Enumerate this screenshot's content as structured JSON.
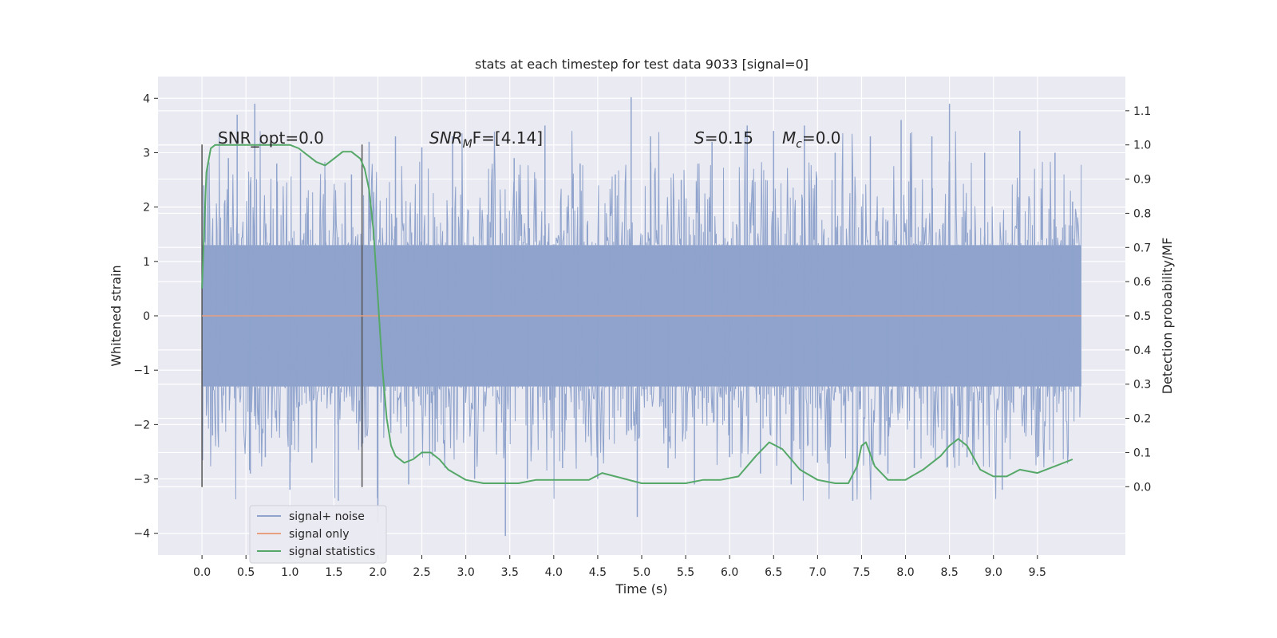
{
  "chart_data": {
    "type": "line",
    "title": "stats at each timestep for test data 9033 [signal=0]",
    "xlabel": "Time (s)",
    "ylabel": "Whitened strain",
    "y2label": "Detection probability/MF",
    "xlim": [
      -0.5,
      10.5
    ],
    "ylim": [
      -4.4,
      4.4
    ],
    "y2lim": [
      -0.2,
      1.2
    ],
    "x_ticks": [
      "0.0",
      "0.5",
      "1.0",
      "1.5",
      "2.0",
      "2.5",
      "3.0",
      "3.5",
      "4.0",
      "4.5",
      "5.0",
      "5.5",
      "6.0",
      "6.5",
      "7.0",
      "7.5",
      "8.0",
      "8.5",
      "9.0",
      "9.5"
    ],
    "y_ticks": [
      "4",
      "3",
      "2",
      "1",
      "0",
      "−1",
      "−2",
      "−3",
      "−4"
    ],
    "y2_ticks": [
      "1.1",
      "1.0",
      "0.9",
      "0.8",
      "0.7",
      "0.6",
      "0.5",
      "0.4",
      "0.3",
      "0.2",
      "0.1",
      "0.0"
    ],
    "grid": true,
    "legend_position": "lower-left",
    "annotations": {
      "snr_opt": "SNR_opt=0.0",
      "snr_mf_base": "SNR",
      "snr_mf_sub": "M",
      "snr_mf_rest": "F=[4.14]",
      "s_sym": "S",
      "s_val": "=0.15",
      "mc_sym": "M",
      "mc_sub": "c",
      "mc_val": "=0.0"
    },
    "window_markers_x": [
      0.0,
      1.82
    ],
    "noise_envelope": {
      "x": [
        0.0,
        10.0
      ],
      "dense_band": [
        -1.3,
        1.3
      ],
      "max_peak": 4.02,
      "min_trough": -4.05
    },
    "series": [
      {
        "name": "signal+ noise",
        "color": "#8fa3cc",
        "x": [
          0.02,
          0.12,
          0.3,
          0.4,
          0.55,
          0.6,
          0.72,
          0.85,
          1.0,
          1.12,
          1.25,
          1.4,
          1.55,
          1.7,
          1.9,
          2.0,
          2.2,
          2.35,
          2.5,
          2.65,
          2.85,
          3.1,
          3.3,
          3.45,
          3.55,
          3.7,
          3.9,
          4.1,
          4.3,
          4.5,
          4.7,
          4.88,
          4.95,
          5.1,
          5.3,
          5.45,
          5.6,
          5.8,
          6.0,
          6.2,
          6.35,
          6.5,
          6.7,
          6.85,
          7.0,
          7.2,
          7.4,
          7.6,
          7.8,
          7.95,
          8.1,
          8.3,
          8.5,
          8.7,
          8.9,
          9.1,
          9.3,
          9.5,
          9.7,
          9.9
        ],
        "y": [
          2.4,
          -2.2,
          2.9,
          3.7,
          -2.9,
          3.9,
          -2.6,
          2.8,
          -3.2,
          3.0,
          -2.7,
          2.5,
          -3.4,
          2.6,
          3.2,
          -3.8,
          3.3,
          -3.1,
          3.1,
          -2.5,
          3.3,
          -3.0,
          2.7,
          -4.05,
          2.9,
          -3.0,
          3.5,
          -2.8,
          2.8,
          -3.0,
          2.6,
          4.02,
          -3.7,
          3.3,
          -2.8,
          2.5,
          -3.1,
          3.2,
          -2.6,
          3.5,
          -2.9,
          3.4,
          -3.1,
          3.5,
          -2.7,
          3.0,
          -3.4,
          3.3,
          -2.9,
          3.6,
          -2.8,
          3.3,
          3.9,
          -2.6,
          3.0,
          -3.2,
          3.4,
          -2.6,
          3.0,
          2.1
        ]
      },
      {
        "name": "signal only",
        "color": "#e8a07f",
        "x": [
          0.0,
          10.0
        ],
        "y": [
          0.0,
          0.0
        ]
      },
      {
        "name": "signal statistics",
        "color": "#55a868",
        "axis": "right",
        "x": [
          0.0,
          0.05,
          0.1,
          0.15,
          0.2,
          0.3,
          0.5,
          0.8,
          1.0,
          1.1,
          1.2,
          1.3,
          1.4,
          1.5,
          1.6,
          1.7,
          1.8,
          1.85,
          1.9,
          1.95,
          2.0,
          2.05,
          2.1,
          2.15,
          2.2,
          2.3,
          2.4,
          2.5,
          2.6,
          2.7,
          2.8,
          3.0,
          3.2,
          3.4,
          3.6,
          3.8,
          4.0,
          4.2,
          4.4,
          4.55,
          4.7,
          5.0,
          5.2,
          5.5,
          5.7,
          5.9,
          6.1,
          6.3,
          6.45,
          6.6,
          6.8,
          7.0,
          7.2,
          7.35,
          7.45,
          7.5,
          7.55,
          7.65,
          7.8,
          8.0,
          8.2,
          8.4,
          8.5,
          8.6,
          8.7,
          8.85,
          9.0,
          9.15,
          9.3,
          9.5,
          9.7,
          9.9
        ],
        "y": [
          0.58,
          0.92,
          0.99,
          1.0,
          1.0,
          1.0,
          1.0,
          1.0,
          1.0,
          0.99,
          0.97,
          0.95,
          0.94,
          0.96,
          0.98,
          0.98,
          0.96,
          0.93,
          0.87,
          0.75,
          0.55,
          0.35,
          0.2,
          0.12,
          0.09,
          0.07,
          0.08,
          0.1,
          0.1,
          0.08,
          0.05,
          0.02,
          0.01,
          0.01,
          0.01,
          0.02,
          0.02,
          0.02,
          0.02,
          0.04,
          0.03,
          0.01,
          0.01,
          0.01,
          0.02,
          0.02,
          0.03,
          0.09,
          0.13,
          0.11,
          0.05,
          0.02,
          0.01,
          0.01,
          0.06,
          0.12,
          0.13,
          0.06,
          0.02,
          0.02,
          0.05,
          0.09,
          0.12,
          0.14,
          0.12,
          0.05,
          0.03,
          0.03,
          0.05,
          0.04,
          0.06,
          0.08
        ]
      }
    ]
  }
}
